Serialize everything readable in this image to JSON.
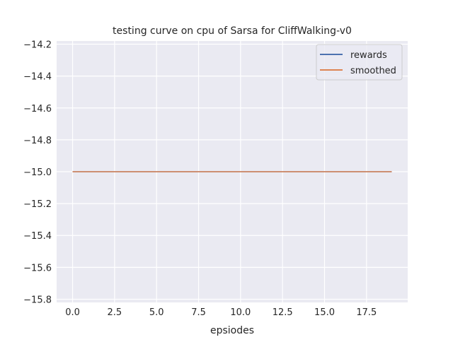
{
  "chart_data": {
    "type": "line",
    "title": "testing curve on cpu of Sarsa for CliffWalking-v0",
    "xlabel": "epsiodes",
    "ylabel": "",
    "xlim": [
      -0.95,
      19.95
    ],
    "ylim": [
      -15.82,
      -14.18
    ],
    "xticks": [
      0.0,
      2.5,
      5.0,
      7.5,
      10.0,
      12.5,
      15.0,
      17.5
    ],
    "xtick_labels": [
      "0.0",
      "2.5",
      "5.0",
      "7.5",
      "10.0",
      "12.5",
      "15.0",
      "17.5"
    ],
    "yticks": [
      -14.2,
      -14.4,
      -14.6,
      -14.8,
      -15.0,
      -15.2,
      -15.4,
      -15.6,
      -15.8
    ],
    "ytick_labels": [
      "−14.2",
      "−14.4",
      "−14.6",
      "−14.8",
      "−15.0",
      "−15.2",
      "−15.4",
      "−15.6",
      "−15.8"
    ],
    "grid": true,
    "legend_position": "top-right",
    "background": "#eaeaf2",
    "x": [
      0,
      1,
      2,
      3,
      4,
      5,
      6,
      7,
      8,
      9,
      10,
      11,
      12,
      13,
      14,
      15,
      16,
      17,
      18,
      19
    ],
    "series": [
      {
        "name": "rewards",
        "color": "#4c72b0",
        "values": [
          -15,
          -15,
          -15,
          -15,
          -15,
          -15,
          -15,
          -15,
          -15,
          -15,
          -15,
          -15,
          -15,
          -15,
          -15,
          -15,
          -15,
          -15,
          -15,
          -15
        ]
      },
      {
        "name": "smoothed",
        "color": "#dd8452",
        "values": [
          -15,
          -15,
          -15,
          -15,
          -15,
          -15,
          -15,
          -15,
          -15,
          -15,
          -15,
          -15,
          -15,
          -15,
          -15,
          -15,
          -15,
          -15,
          -15,
          -15
        ]
      }
    ]
  }
}
